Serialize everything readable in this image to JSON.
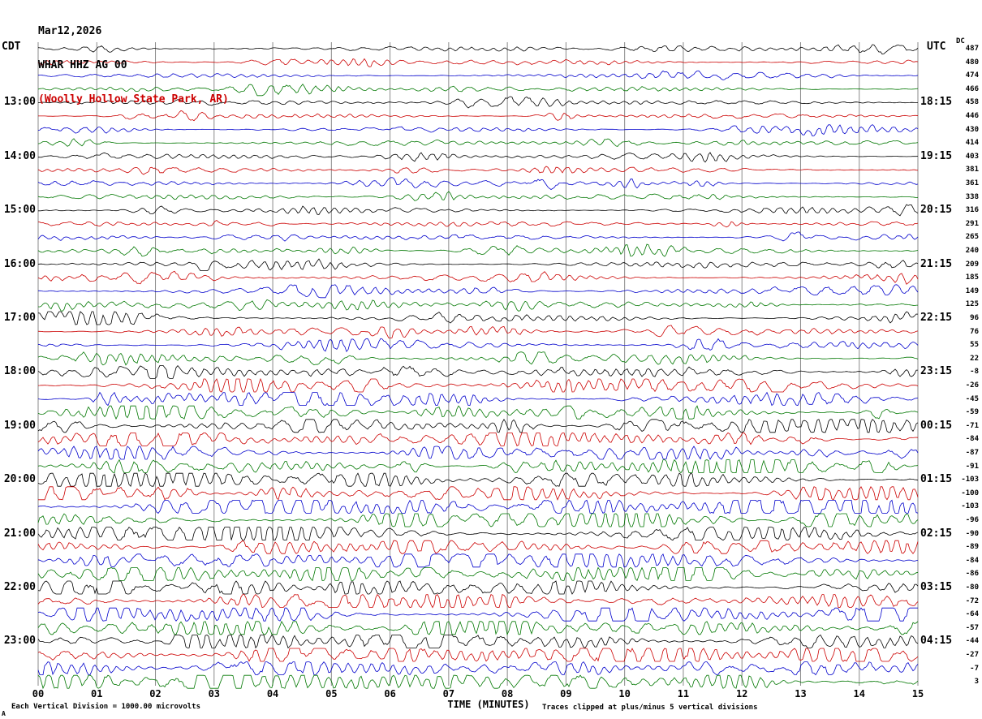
{
  "header": {
    "date": "Mar12,2026",
    "station": "WHAR HHZ AG 00",
    "location": "(Woolly Hollow State Park, AR)",
    "left_tz": "CDT",
    "right_tz": "UTC",
    "dc_label": "DC"
  },
  "footer": {
    "axis_title": "TIME (MINUTES)",
    "left_note": "Each Vertical Division = 1000.00 microvolts",
    "right_note": "Traces clipped at plus/minus 5 vertical divisions",
    "corner_mark": "A"
  },
  "colors": {
    "black": "#000000",
    "red": "#cc0000",
    "blue": "#0000cc",
    "green": "#007700",
    "grid": "#8a8a8a"
  },
  "chart_data": {
    "type": "line",
    "subtype": "helicorder-seismogram",
    "title": "WHAR HHZ AG 00 (Woolly Hollow State Park, AR) Mar12,2026",
    "xlabel": "TIME (MINUTES)",
    "x_range_minutes": [
      0,
      15
    ],
    "x_tick_labels": [
      "00",
      "01",
      "02",
      "03",
      "04",
      "05",
      "06",
      "07",
      "08",
      "09",
      "10",
      "11",
      "12",
      "13",
      "14",
      "15"
    ],
    "rows": 48,
    "minutes_per_row": 15,
    "clip_divisions": 5,
    "microvolts_per_division": 1000.0,
    "trace_color_cycle": [
      "#000000",
      "#cc0000",
      "#0000cc",
      "#007700"
    ],
    "left_time_labels": [
      {
        "row": 4,
        "label": "13:00"
      },
      {
        "row": 8,
        "label": "14:00"
      },
      {
        "row": 12,
        "label": "15:00"
      },
      {
        "row": 16,
        "label": "16:00"
      },
      {
        "row": 20,
        "label": "17:00"
      },
      {
        "row": 24,
        "label": "18:00"
      },
      {
        "row": 28,
        "label": "19:00"
      },
      {
        "row": 32,
        "label": "20:00"
      },
      {
        "row": 36,
        "label": "21:00"
      },
      {
        "row": 40,
        "label": "22:00"
      },
      {
        "row": 44,
        "label": "23:00"
      }
    ],
    "right_time_labels": [
      {
        "row": 4,
        "label": "18:15"
      },
      {
        "row": 8,
        "label": "19:15"
      },
      {
        "row": 12,
        "label": "20:15"
      },
      {
        "row": 16,
        "label": "21:15"
      },
      {
        "row": 20,
        "label": "22:15"
      },
      {
        "row": 24,
        "label": "23:15"
      },
      {
        "row": 28,
        "label": "00:15"
      },
      {
        "row": 32,
        "label": "01:15"
      },
      {
        "row": 36,
        "label": "02:15"
      },
      {
        "row": 40,
        "label": "03:15"
      },
      {
        "row": 44,
        "label": "04:15"
      }
    ],
    "dc_offsets": [
      487,
      480,
      474,
      466,
      458,
      446,
      430,
      414,
      403,
      381,
      361,
      338,
      316,
      291,
      265,
      240,
      209,
      185,
      149,
      125,
      96,
      76,
      55,
      22,
      -8,
      -26,
      -45,
      -59,
      -71,
      -84,
      -87,
      -91,
      -103,
      -100,
      -103,
      -96,
      -90,
      -89,
      -84,
      -86,
      -80,
      -72,
      -64,
      -57,
      -44,
      -27,
      -7,
      3
    ],
    "amplitude_profile": [
      2.2,
      2.2,
      2.2,
      2.2,
      2.4,
      2.4,
      2.4,
      2.4,
      2.6,
      2.6,
      2.6,
      2.6,
      2.8,
      2.8,
      2.8,
      2.8,
      3.2,
      3.2,
      3.2,
      3.2,
      3.8,
      3.8,
      3.8,
      3.8,
      5.0,
      5.0,
      5.0,
      5.0,
      5.6,
      5.6,
      5.6,
      5.6,
      6.2,
      6.2,
      6.2,
      6.2,
      6.6,
      6.6,
      6.6,
      6.6,
      6.8,
      6.8,
      6.8,
      6.8,
      6.4,
      6.4,
      6.4,
      6.4
    ]
  }
}
